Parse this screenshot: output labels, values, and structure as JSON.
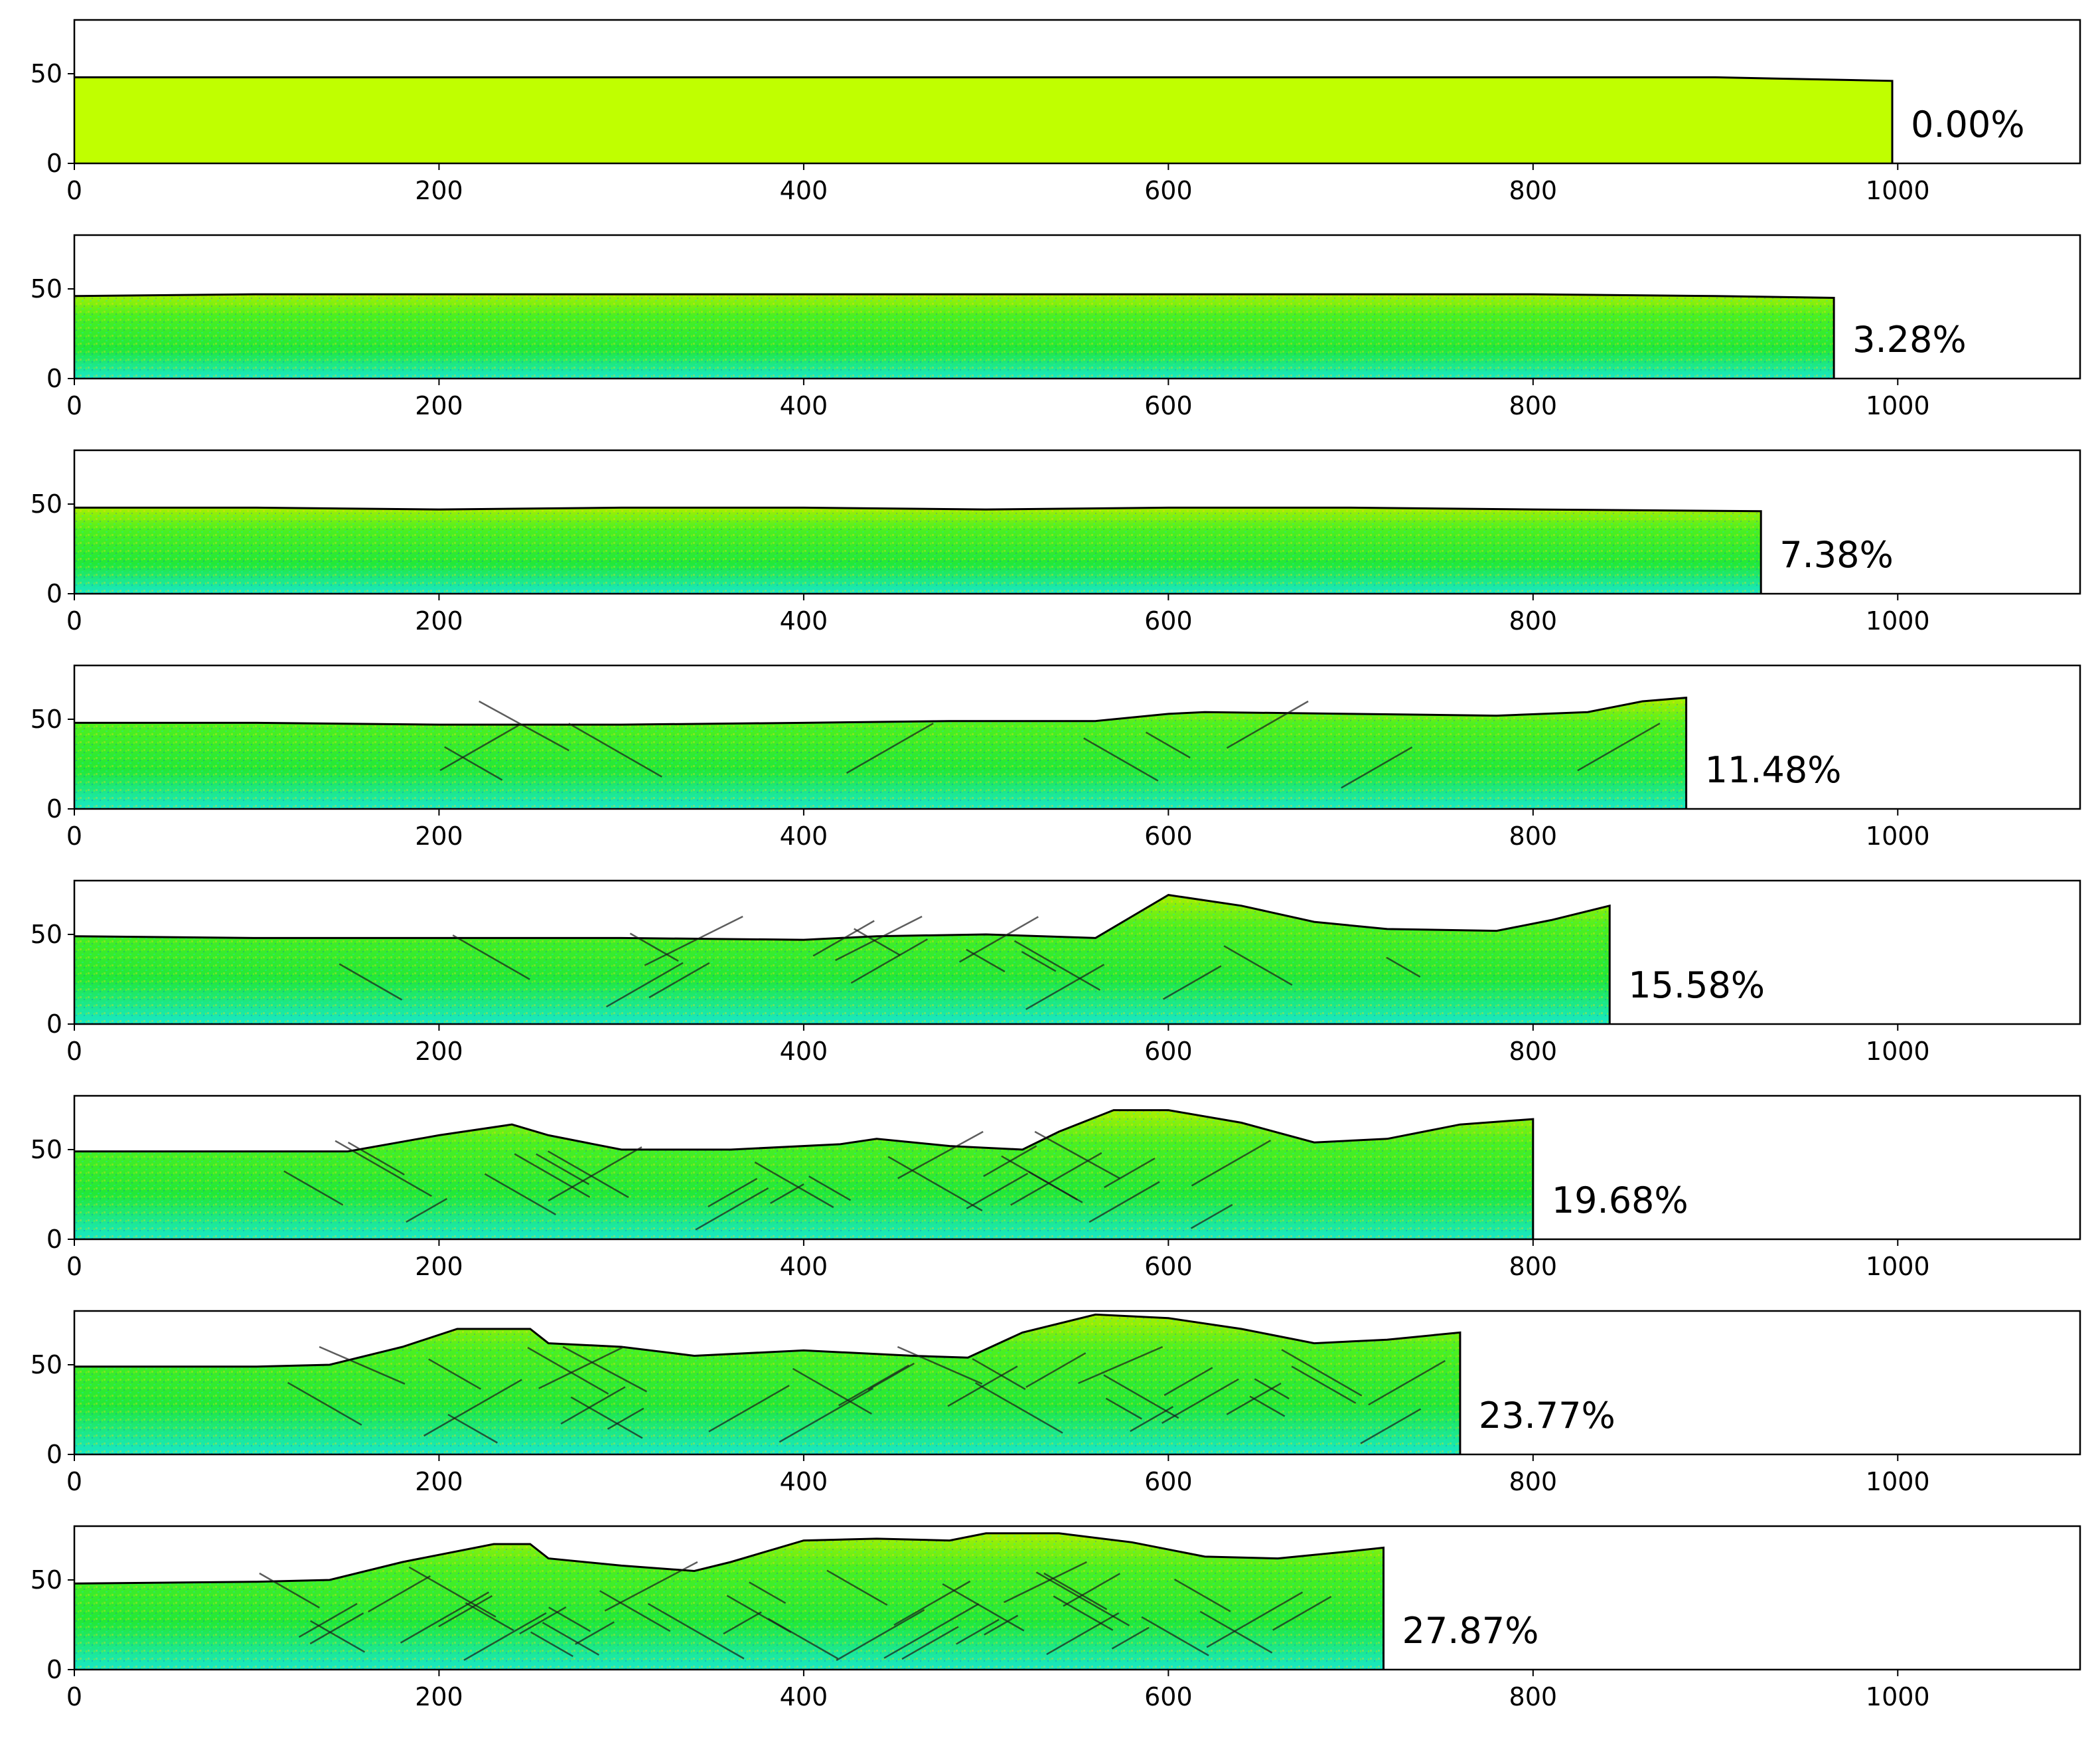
{
  "chart_data": {
    "type": "area",
    "x_ticks": [
      0,
      200,
      400,
      600,
      800,
      1000
    ],
    "y_ticks": [
      0,
      50
    ],
    "xlim": [
      0,
      1100
    ],
    "ylim": [
      0,
      80
    ],
    "grid": false,
    "colors": {
      "initial_fill": "#c0ff00",
      "body_green": "#22e838",
      "yellow_green": "#a8f000",
      "cyan": "#18e8c8",
      "deep_blue": "#0a3cff",
      "crack_dark": "#1a1a1a",
      "outline": "#000000"
    },
    "panels": [
      {
        "label": "0.00%",
        "x_end": 997,
        "profile": [
          [
            0,
            48
          ],
          [
            100,
            48
          ],
          [
            200,
            48
          ],
          [
            300,
            48
          ],
          [
            400,
            48
          ],
          [
            500,
            48
          ],
          [
            600,
            48
          ],
          [
            700,
            48
          ],
          [
            800,
            48
          ],
          [
            900,
            48
          ],
          [
            997,
            46
          ]
        ]
      },
      {
        "label": "3.28%",
        "x_end": 965,
        "profile": [
          [
            0,
            46
          ],
          [
            100,
            47
          ],
          [
            200,
            47
          ],
          [
            300,
            47
          ],
          [
            400,
            47
          ],
          [
            500,
            47
          ],
          [
            600,
            47
          ],
          [
            700,
            47
          ],
          [
            800,
            47
          ],
          [
            900,
            46
          ],
          [
            965,
            45
          ]
        ]
      },
      {
        "label": "7.38%",
        "x_end": 925,
        "profile": [
          [
            0,
            48
          ],
          [
            100,
            48
          ],
          [
            200,
            47
          ],
          [
            300,
            48
          ],
          [
            400,
            48
          ],
          [
            500,
            47
          ],
          [
            600,
            48
          ],
          [
            700,
            48
          ],
          [
            800,
            47
          ],
          [
            925,
            46
          ]
        ]
      },
      {
        "label": "11.48%",
        "x_end": 884,
        "profile": [
          [
            0,
            48
          ],
          [
            100,
            48
          ],
          [
            200,
            47
          ],
          [
            300,
            47
          ],
          [
            400,
            48
          ],
          [
            480,
            49
          ],
          [
            560,
            49
          ],
          [
            600,
            53
          ],
          [
            620,
            54
          ],
          [
            700,
            53
          ],
          [
            780,
            52
          ],
          [
            830,
            54
          ],
          [
            860,
            60
          ],
          [
            884,
            62
          ]
        ]
      },
      {
        "label": "15.58%",
        "x_end": 842,
        "profile": [
          [
            0,
            49
          ],
          [
            100,
            48
          ],
          [
            200,
            48
          ],
          [
            300,
            48
          ],
          [
            400,
            47
          ],
          [
            440,
            49
          ],
          [
            500,
            50
          ],
          [
            560,
            48
          ],
          [
            580,
            60
          ],
          [
            600,
            72
          ],
          [
            640,
            66
          ],
          [
            680,
            57
          ],
          [
            720,
            53
          ],
          [
            780,
            52
          ],
          [
            810,
            58
          ],
          [
            842,
            66
          ]
        ]
      },
      {
        "label": "19.68%",
        "x_end": 800,
        "profile": [
          [
            0,
            49
          ],
          [
            100,
            49
          ],
          [
            150,
            49
          ],
          [
            200,
            58
          ],
          [
            240,
            64
          ],
          [
            260,
            58
          ],
          [
            300,
            50
          ],
          [
            360,
            50
          ],
          [
            420,
            53
          ],
          [
            440,
            56
          ],
          [
            480,
            52
          ],
          [
            520,
            50
          ],
          [
            540,
            60
          ],
          [
            570,
            72
          ],
          [
            600,
            72
          ],
          [
            640,
            65
          ],
          [
            680,
            54
          ],
          [
            720,
            56
          ],
          [
            760,
            64
          ],
          [
            800,
            67
          ]
        ]
      },
      {
        "label": "23.77%",
        "x_end": 760,
        "profile": [
          [
            0,
            49
          ],
          [
            100,
            49
          ],
          [
            140,
            50
          ],
          [
            180,
            60
          ],
          [
            210,
            70
          ],
          [
            250,
            70
          ],
          [
            260,
            62
          ],
          [
            300,
            60
          ],
          [
            340,
            55
          ],
          [
            400,
            58
          ],
          [
            460,
            55
          ],
          [
            490,
            54
          ],
          [
            520,
            68
          ],
          [
            560,
            78
          ],
          [
            600,
            76
          ],
          [
            640,
            70
          ],
          [
            680,
            62
          ],
          [
            720,
            64
          ],
          [
            760,
            68
          ]
        ]
      },
      {
        "label": "27.87%",
        "x_end": 718,
        "profile": [
          [
            0,
            48
          ],
          [
            100,
            49
          ],
          [
            140,
            50
          ],
          [
            180,
            60
          ],
          [
            230,
            70
          ],
          [
            250,
            70
          ],
          [
            260,
            62
          ],
          [
            300,
            58
          ],
          [
            340,
            55
          ],
          [
            360,
            60
          ],
          [
            400,
            72
          ],
          [
            440,
            73
          ],
          [
            480,
            72
          ],
          [
            500,
            76
          ],
          [
            540,
            76
          ],
          [
            580,
            71
          ],
          [
            620,
            63
          ],
          [
            660,
            62
          ],
          [
            700,
            66
          ],
          [
            718,
            68
          ]
        ]
      }
    ]
  }
}
